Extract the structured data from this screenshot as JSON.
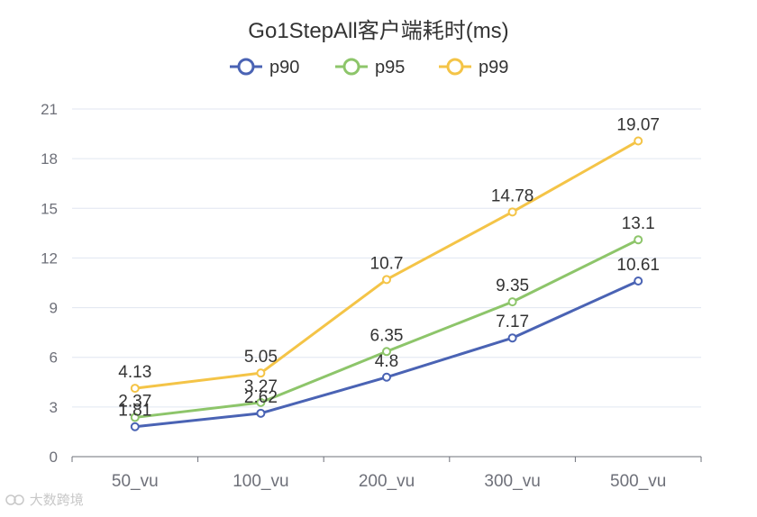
{
  "chart_data": {
    "type": "line",
    "title": "Go1StepAll客户端耗时(ms)",
    "categories": [
      "50_vu",
      "100_vu",
      "200_vu",
      "300_vu",
      "500_vu"
    ],
    "ylim": [
      0,
      21
    ],
    "yticks": [
      0,
      3,
      6,
      9,
      12,
      15,
      18,
      21
    ],
    "grid": true,
    "legend_position": "top-center",
    "series": [
      {
        "name": "p90",
        "color": "#4a63b4",
        "values": [
          1.81,
          2.62,
          4.8,
          7.17,
          10.61
        ],
        "labels": [
          "1.81",
          "2.62",
          "4.8",
          "7.17",
          "10.61"
        ]
      },
      {
        "name": "p95",
        "color": "#8dc56a",
        "values": [
          2.37,
          3.27,
          6.35,
          9.35,
          13.1
        ],
        "labels": [
          "2.37",
          "3.27",
          "6.35",
          "9.35",
          "13.1"
        ]
      },
      {
        "name": "p99",
        "color": "#f4c447",
        "values": [
          4.13,
          5.05,
          10.7,
          14.78,
          19.07
        ],
        "labels": [
          "4.13",
          "5.05",
          "10.7",
          "14.78",
          "19.07"
        ]
      }
    ]
  },
  "watermark": {
    "text": "大数跨境"
  }
}
